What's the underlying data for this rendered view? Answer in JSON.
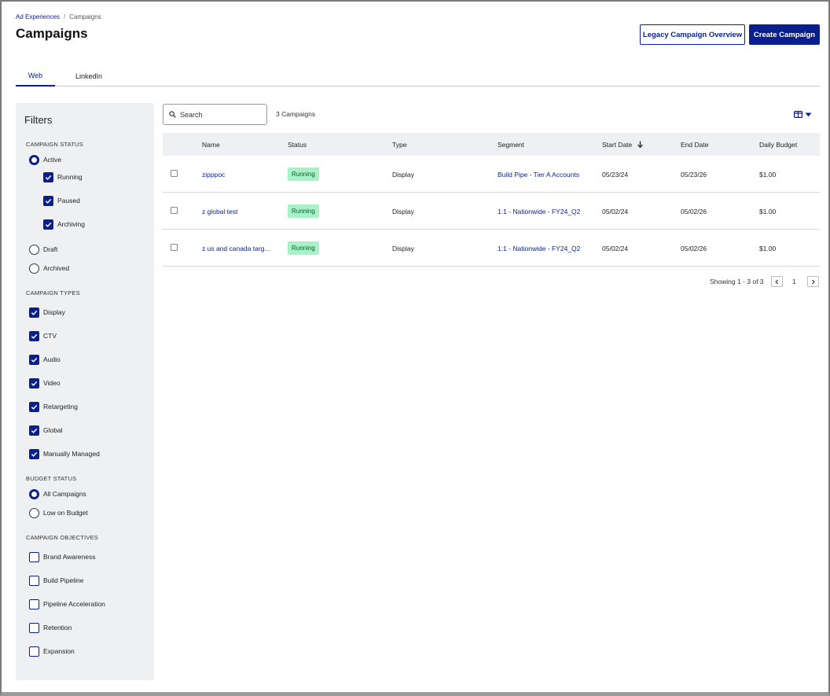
{
  "breadcrumb": {
    "root": "Ad Experiences",
    "separator": "/",
    "current": "Campaigns"
  },
  "page": {
    "title": "Campaigns"
  },
  "header": {
    "legacy_button": "Legacy Campaign Overview",
    "create_button": "Create Campaign"
  },
  "tabs": [
    {
      "label": "Web",
      "active": true
    },
    {
      "label": "LinkedIn",
      "active": false
    }
  ],
  "filters": {
    "title": "Filters",
    "campaign_status": {
      "title": "CAMPAIGN STATUS",
      "active": "Active",
      "active_sub": [
        "Running",
        "Paused",
        "Archiving"
      ],
      "draft": "Draft",
      "archived": "Archived"
    },
    "campaign_types": {
      "title": "CAMPAIGN TYPES",
      "items": [
        "Display",
        "CTV",
        "Audio",
        "Video",
        "Retargeting",
        "Global",
        "Manually Managed"
      ]
    },
    "budget_status": {
      "title": "BUDGET STATUS",
      "items": [
        "All Campaigns",
        "Low on Budget"
      ],
      "selected": "All Campaigns"
    },
    "campaign_objectives": {
      "title": "CAMPAIGN OBJECTIVES",
      "items": [
        "Brand Awareness",
        "Build Pipeline",
        "Pipeline Acceleration",
        "Retention",
        "Expansion"
      ]
    }
  },
  "search": {
    "placeholder": "Search"
  },
  "campaign_count": "3 Campaigns",
  "table": {
    "columns": [
      "Name",
      "Status",
      "Type",
      "Segment",
      "Start Date",
      "End Date",
      "Daily Budget"
    ],
    "sort_column": "Start Date",
    "sort_direction": "descending",
    "rows": [
      {
        "name": "zipppoc",
        "status": "Running",
        "type": "Display",
        "segment": "Build Pipe - Tier A Accounts",
        "start": "05/23/24",
        "end": "05/23/26",
        "budget": "$1.00"
      },
      {
        "name": "z global test",
        "status": "Running",
        "type": "Display",
        "segment": "1:1 - Nationwide - FY24_Q2",
        "start": "05/02/24",
        "end": "05/02/26",
        "budget": "$1.00"
      },
      {
        "name": "z us and canada targ...",
        "status": "Running",
        "type": "Display",
        "segment": "1:1 - Nationwide - FY24_Q2",
        "start": "05/02/24",
        "end": "05/02/26",
        "budget": "$1.00"
      }
    ]
  },
  "pagination": {
    "showing": "Showing 1 - 3 of 3",
    "page": "1"
  },
  "icons": {
    "search": "search-icon",
    "columns": "columns-icon",
    "dropdown": "caret-down-icon",
    "sort": "arrow-down-icon",
    "prev": "chevron-left-icon",
    "next": "chevron-right-icon",
    "check": "check-icon"
  },
  "colors": {
    "brand": "#0a1f8f",
    "badge_bg": "#a7f3c7",
    "badge_text": "#0c5a32",
    "panel_bg": "#eef0f2"
  }
}
